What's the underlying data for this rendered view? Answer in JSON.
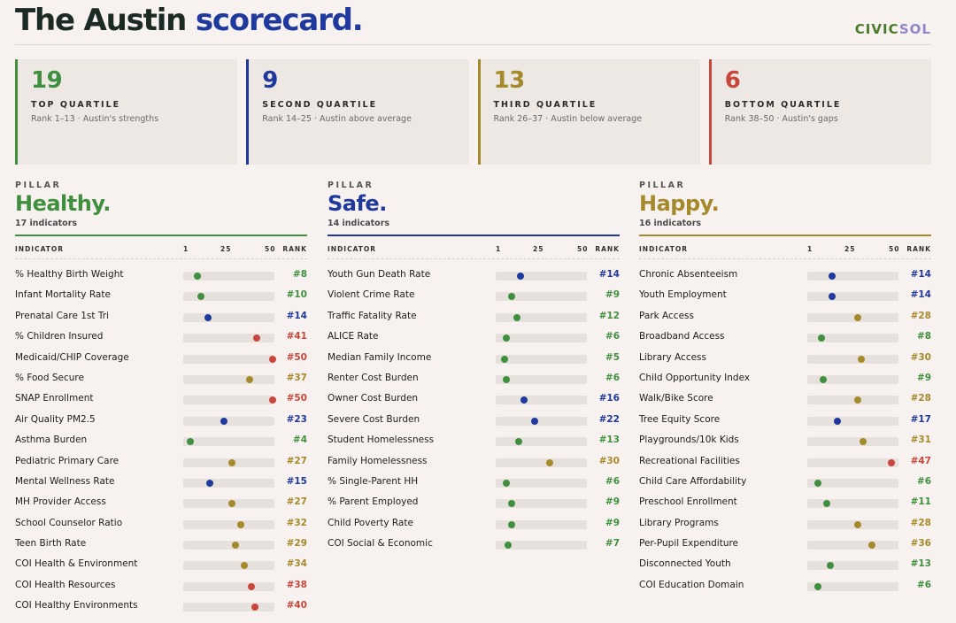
{
  "header": {
    "title_main": "The Austin",
    "title_accent": "scorecard.",
    "logo_part1": "CIVIC",
    "logo_part2": "SOL"
  },
  "colors": {
    "green": "#3f8f3f",
    "blue": "#1f3a9c",
    "gold": "#a58a2c",
    "red": "#c8473d"
  },
  "quartiles": [
    {
      "num": "19",
      "label": "TOP QUARTILE",
      "sub": "Rank 1–13 · Austin's strengths",
      "color": "green"
    },
    {
      "num": "9",
      "label": "SECOND QUARTILE",
      "sub": "Rank 14–25 · Austin above average",
      "color": "blue"
    },
    {
      "num": "13",
      "label": "THIRD QUARTILE",
      "sub": "Rank 26–37 · Austin below average",
      "color": "gold"
    },
    {
      "num": "6",
      "label": "BOTTOM QUARTILE",
      "sub": "Rank 38–50 · Austin's gaps",
      "color": "red"
    }
  ],
  "scale_labels": {
    "indicator": "INDICATOR",
    "t1": "1",
    "t25": "25",
    "t50": "50",
    "rank": "RANK",
    "pillar": "PILLAR"
  },
  "pillars": [
    {
      "name": "Healthy.",
      "count": "17 indicators",
      "color": "green",
      "rows": [
        {
          "label": "% Healthy Birth Weight",
          "rank": 8
        },
        {
          "label": "Infant Mortality Rate",
          "rank": 10
        },
        {
          "label": "Prenatal Care 1st Tri",
          "rank": 14
        },
        {
          "label": "% Children Insured",
          "rank": 41
        },
        {
          "label": "Medicaid/CHIP Coverage",
          "rank": 50
        },
        {
          "label": "% Food Secure",
          "rank": 37
        },
        {
          "label": "SNAP Enrollment",
          "rank": 50
        },
        {
          "label": "Air Quality PM2.5",
          "rank": 23
        },
        {
          "label": "Asthma Burden",
          "rank": 4
        },
        {
          "label": "Pediatric Primary Care",
          "rank": 27
        },
        {
          "label": "Mental Wellness Rate",
          "rank": 15
        },
        {
          "label": "MH Provider Access",
          "rank": 27
        },
        {
          "label": "School Counselor Ratio",
          "rank": 32
        },
        {
          "label": "Teen Birth Rate",
          "rank": 29
        },
        {
          "label": "COI Health & Environment",
          "rank": 34
        },
        {
          "label": "COI Health Resources",
          "rank": 38
        },
        {
          "label": "COI Healthy Environments",
          "rank": 40
        }
      ]
    },
    {
      "name": "Safe.",
      "count": "14 indicators",
      "color": "blue",
      "rows": [
        {
          "label": "Youth Gun Death Rate",
          "rank": 14
        },
        {
          "label": "Violent Crime Rate",
          "rank": 9
        },
        {
          "label": "Traffic Fatality Rate",
          "rank": 12
        },
        {
          "label": "ALICE Rate",
          "rank": 6
        },
        {
          "label": "Median Family Income",
          "rank": 5
        },
        {
          "label": "Renter Cost Burden",
          "rank": 6
        },
        {
          "label": "Owner Cost Burden",
          "rank": 16
        },
        {
          "label": "Severe Cost Burden",
          "rank": 22
        },
        {
          "label": "Student Homelessness",
          "rank": 13
        },
        {
          "label": "Family Homelessness",
          "rank": 30
        },
        {
          "label": "% Single-Parent HH",
          "rank": 6
        },
        {
          "label": "% Parent Employed",
          "rank": 9
        },
        {
          "label": "Child Poverty Rate",
          "rank": 9
        },
        {
          "label": "COI Social & Economic",
          "rank": 7
        }
      ]
    },
    {
      "name": "Happy.",
      "count": "16 indicators",
      "color": "gold",
      "rows": [
        {
          "label": "Chronic Absenteeism",
          "rank": 14
        },
        {
          "label": "Youth Employment",
          "rank": 14
        },
        {
          "label": "Park Access",
          "rank": 28
        },
        {
          "label": "Broadband Access",
          "rank": 8
        },
        {
          "label": "Library Access",
          "rank": 30
        },
        {
          "label": "Child Opportunity Index",
          "rank": 9
        },
        {
          "label": "Walk/Bike Score",
          "rank": 28
        },
        {
          "label": "Tree Equity Score",
          "rank": 17
        },
        {
          "label": "Playgrounds/10k Kids",
          "rank": 31
        },
        {
          "label": "Recreational Facilities",
          "rank": 47
        },
        {
          "label": "Child Care Affordability",
          "rank": 6
        },
        {
          "label": "Preschool Enrollment",
          "rank": 11
        },
        {
          "label": "Library Programs",
          "rank": 28
        },
        {
          "label": "Per-Pupil Expenditure",
          "rank": 36
        },
        {
          "label": "Disconnected Youth",
          "rank": 13
        },
        {
          "label": "COI Education Domain",
          "rank": 6
        }
      ]
    }
  ]
}
